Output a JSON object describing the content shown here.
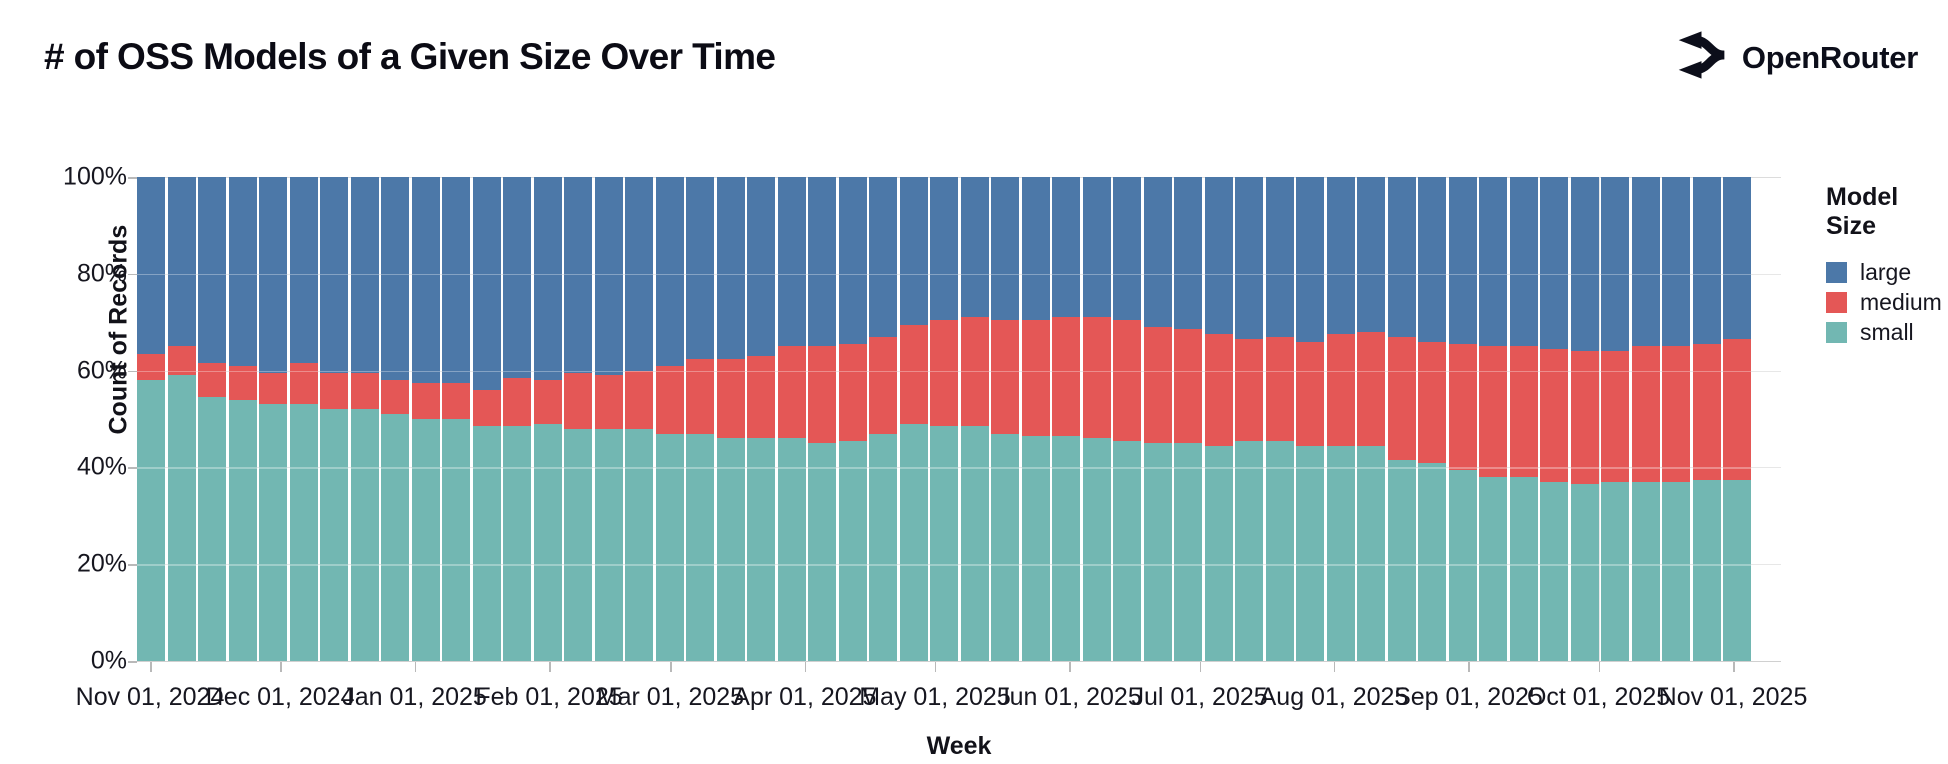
{
  "header": {
    "title": "# of OSS Models of a Given Size Over Time",
    "brand": "OpenRouter"
  },
  "axes": {
    "y_title": "Count of Records",
    "x_title": "Week",
    "y_ticks": [
      0,
      20,
      40,
      60,
      80,
      100
    ],
    "y_tick_labels": [
      "0%",
      "20%",
      "40%",
      "60%",
      "80%",
      "100%"
    ],
    "x_tick_labels": [
      "Nov 01, 2024",
      "Dec 01, 2024",
      "Jan 01, 2025",
      "Feb 01, 2025",
      "Mar 01, 2025",
      "Apr 01, 2025",
      "May 01, 2025",
      "Jun 01, 2025",
      "Jul 01, 2025",
      "Aug 01, 2025",
      "Sep 01, 2025",
      "Oct 01, 2025",
      "Nov 01, 2025"
    ]
  },
  "legend": {
    "title": "Model Size",
    "entries": [
      {
        "label": "large",
        "color": "#4c78a8"
      },
      {
        "label": "medium",
        "color": "#e45756"
      },
      {
        "label": "small",
        "color": "#72b7b2"
      }
    ]
  },
  "colors": {
    "large": "#4c78a8",
    "medium": "#e45756",
    "small": "#72b7b2",
    "text": "#16161f",
    "grid": "#dcdcdc"
  },
  "chart_data": {
    "type": "bar",
    "variant": "100%-stacked-weekly",
    "title": "# of OSS Models of a Given Size Over Time",
    "xlabel": "Week",
    "ylabel": "Count of Records",
    "ylim": [
      0,
      100
    ],
    "grid": true,
    "legend_position": "right",
    "x_range": [
      "Nov 01, 2024",
      "Nov 01, 2025"
    ],
    "weeks": [
      "2024-10-27",
      "2024-11-03",
      "2024-11-10",
      "2024-11-17",
      "2024-11-24",
      "2024-12-01",
      "2024-12-08",
      "2024-12-15",
      "2024-12-22",
      "2024-12-29",
      "2025-01-05",
      "2025-01-12",
      "2025-01-19",
      "2025-01-26",
      "2025-02-02",
      "2025-02-09",
      "2025-02-16",
      "2025-02-23",
      "2025-03-02",
      "2025-03-09",
      "2025-03-16",
      "2025-03-23",
      "2025-03-30",
      "2025-04-06",
      "2025-04-13",
      "2025-04-20",
      "2025-04-27",
      "2025-05-04",
      "2025-05-11",
      "2025-05-18",
      "2025-05-25",
      "2025-06-01",
      "2025-06-08",
      "2025-06-15",
      "2025-06-22",
      "2025-06-29",
      "2025-07-06",
      "2025-07-13",
      "2025-07-20",
      "2025-07-27",
      "2025-08-03",
      "2025-08-10",
      "2025-08-17",
      "2025-08-24",
      "2025-08-31",
      "2025-09-07",
      "2025-09-14",
      "2025-09-21",
      "2025-09-28",
      "2025-10-05",
      "2025-10-12",
      "2025-10-19",
      "2025-10-26"
    ],
    "series": [
      {
        "name": "small",
        "color": "#72b7b2",
        "values": [
          58,
          59,
          54.5,
          54,
          53,
          53,
          52,
          52,
          51,
          50,
          50,
          48.5,
          48.5,
          49,
          48,
          48,
          48,
          47,
          47,
          46,
          46,
          46,
          45,
          45.5,
          47,
          49,
          48.5,
          48.5,
          47,
          46.5,
          46.5,
          46,
          45.5,
          45,
          45,
          44.5,
          45.5,
          45.5,
          44.5,
          44.5,
          44.5,
          41.5,
          41,
          39.5,
          38,
          38,
          37,
          36.5,
          37,
          37,
          37,
          37.5,
          37.5
        ]
      },
      {
        "name": "medium",
        "color": "#e45756",
        "values": [
          5.5,
          6,
          7,
          7,
          6.5,
          8.5,
          7.5,
          7.5,
          7,
          7.5,
          7.5,
          7.5,
          10,
          9,
          11.5,
          11,
          12,
          14,
          15.5,
          16.5,
          17,
          19,
          20,
          20,
          20,
          20.5,
          22,
          22.5,
          23.5,
          24,
          24.5,
          25,
          25,
          24,
          23.5,
          23,
          21,
          21.5,
          21.5,
          23,
          23.5,
          25.5,
          25,
          26,
          27,
          27,
          27.5,
          27.5,
          27,
          28,
          28,
          28,
          29
        ]
      },
      {
        "name": "large",
        "color": "#4c78a8",
        "values": [
          36.5,
          35,
          38.5,
          39,
          40.5,
          38.5,
          40.5,
          40.5,
          42,
          42.5,
          42.5,
          44,
          41.5,
          42,
          40.5,
          41,
          40,
          39,
          37.5,
          37.5,
          37,
          35,
          35,
          34.5,
          33,
          30.5,
          29.5,
          29,
          29.5,
          29.5,
          29,
          29,
          29.5,
          31,
          31.5,
          32.5,
          33.5,
          33,
          34,
          32.5,
          32,
          33,
          34,
          34.5,
          35,
          35,
          35.5,
          36,
          36,
          35,
          35,
          34.5,
          33.5
        ]
      }
    ]
  }
}
